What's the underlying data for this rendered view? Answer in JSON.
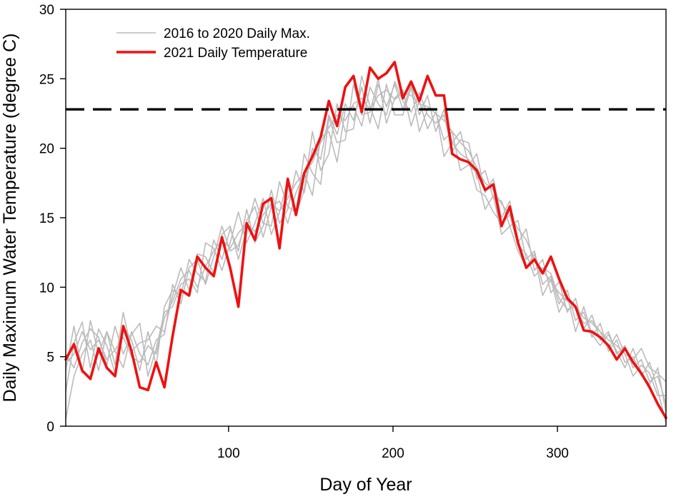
{
  "chart_data": {
    "type": "line",
    "title": "",
    "xlabel": "Day of Year",
    "ylabel": "Daily Maximum Water Temperature (degree C)",
    "xlim": [
      1,
      366
    ],
    "ylim": [
      0,
      30
    ],
    "x_ticks": [
      100,
      200,
      300
    ],
    "y_ticks": [
      0,
      5,
      10,
      15,
      20,
      25,
      30
    ],
    "grid": false,
    "legend_position": "top-left",
    "threshold": {
      "y": 22.8,
      "style": "dashed",
      "color": "#000000"
    },
    "x": [
      1,
      6,
      11,
      16,
      21,
      26,
      31,
      36,
      41,
      46,
      51,
      56,
      61,
      66,
      71,
      76,
      81,
      86,
      91,
      96,
      101,
      106,
      111,
      116,
      121,
      126,
      131,
      136,
      141,
      146,
      151,
      156,
      161,
      166,
      171,
      176,
      181,
      186,
      191,
      196,
      201,
      206,
      211,
      216,
      221,
      226,
      231,
      236,
      241,
      246,
      251,
      256,
      261,
      266,
      271,
      276,
      281,
      286,
      291,
      296,
      301,
      306,
      311,
      316,
      321,
      326,
      331,
      336,
      341,
      346,
      351,
      356,
      361,
      366
    ],
    "series": [
      {
        "name": "2016 to 2020 Daily Max.",
        "color": "#bbbbbb",
        "role": "historical",
        "lines": [
          [
            4.5,
            5.2,
            6.8,
            5.5,
            6.2,
            4.8,
            5.5,
            6.4,
            5.0,
            4.6,
            5.8,
            5.2,
            7.8,
            9.0,
            10.6,
            11.2,
            10.0,
            11.5,
            12.6,
            13.4,
            12.8,
            13.9,
            14.6,
            14.0,
            15.2,
            16.0,
            15.5,
            16.4,
            17.5,
            18.2,
            19.0,
            20.4,
            21.5,
            22.4,
            22.0,
            23.2,
            23.6,
            22.8,
            23.8,
            24.2,
            23.5,
            24.0,
            23.8,
            23.2,
            23.0,
            22.5,
            22.0,
            21.2,
            20.4,
            19.8,
            18.6,
            17.5,
            17.0,
            16.0,
            15.2,
            14.2,
            13.4,
            12.0,
            11.2,
            10.4,
            9.6,
            9.0,
            8.6,
            7.8,
            7.4,
            6.8,
            6.2,
            5.8,
            5.2,
            4.8,
            5.6,
            4.2,
            3.8,
            3.2
          ],
          [
            2.5,
            6.0,
            7.5,
            4.2,
            7.0,
            5.8,
            3.8,
            7.2,
            6.2,
            4.0,
            6.8,
            4.4,
            8.6,
            9.8,
            9.4,
            12.0,
            11.0,
            10.4,
            13.4,
            12.0,
            14.2,
            12.6,
            15.6,
            13.2,
            14.4,
            17.0,
            14.6,
            15.6,
            18.4,
            16.8,
            20.0,
            19.2,
            22.4,
            21.0,
            23.2,
            22.0,
            24.4,
            21.8,
            24.6,
            23.0,
            24.6,
            22.8,
            24.6,
            22.4,
            23.8,
            21.2,
            22.8,
            20.4,
            21.2,
            18.8,
            19.6,
            16.8,
            17.8,
            15.0,
            16.2,
            13.2,
            14.2,
            11.2,
            12.0,
            9.6,
            10.4,
            8.2,
            9.2,
            7.0,
            8.0,
            6.2,
            6.8,
            5.2,
            5.8,
            4.2,
            4.8,
            3.2,
            3.6,
            1.6
          ],
          [
            0.5,
            3.6,
            5.2,
            6.2,
            4.0,
            6.8,
            5.4,
            4.2,
            6.8,
            5.2,
            4.4,
            6.2,
            6.6,
            10.2,
            8.8,
            11.4,
            12.0,
            10.2,
            12.2,
            14.4,
            12.6,
            13.0,
            14.8,
            15.8,
            13.6,
            15.8,
            16.2,
            14.6,
            16.8,
            18.2,
            16.6,
            20.8,
            21.2,
            19.0,
            22.8,
            23.0,
            21.6,
            24.4,
            23.2,
            22.4,
            24.8,
            23.4,
            22.6,
            24.0,
            22.4,
            21.8,
            22.4,
            19.8,
            20.6,
            20.4,
            17.8,
            18.4,
            16.4,
            16.2,
            14.4,
            14.8,
            12.0,
            12.6,
            10.2,
            10.8,
            8.8,
            9.8,
            7.6,
            8.2,
            6.4,
            7.4,
            5.4,
            6.2,
            4.6,
            5.0,
            3.6,
            4.6,
            2.6,
            0.2
          ],
          [
            4.0,
            7.2,
            3.8,
            7.6,
            5.2,
            6.8,
            4.4,
            8.2,
            5.4,
            6.0,
            6.2,
            7.2,
            6.8,
            9.4,
            11.4,
            9.8,
            12.4,
            12.2,
            11.0,
            13.8,
            14.4,
            12.0,
            14.2,
            16.4,
            14.6,
            14.4,
            17.6,
            15.8,
            15.4,
            19.6,
            18.2,
            17.4,
            22.2,
            20.4,
            20.6,
            24.6,
            22.4,
            22.6,
            25.0,
            21.8,
            23.6,
            24.2,
            21.6,
            23.4,
            21.4,
            22.6,
            20.6,
            21.2,
            18.4,
            18.8,
            18.2,
            15.6,
            16.6,
            13.8,
            14.4,
            12.6,
            11.4,
            12.4,
            9.4,
            10.6,
            8.2,
            9.4,
            6.8,
            8.6,
            6.6,
            5.8,
            6.6,
            5.4,
            4.2,
            5.6,
            3.8,
            3.0,
            4.2,
            1.0
          ],
          [
            5.2,
            4.2,
            6.0,
            7.0,
            6.4,
            4.4,
            7.2,
            5.2,
            6.6,
            7.4,
            3.6,
            5.6,
            8.2,
            8.6,
            10.2,
            10.6,
            9.6,
            13.2,
            12.8,
            11.2,
            13.2,
            15.4,
            13.2,
            14.6,
            16.4,
            13.8,
            15.4,
            17.8,
            15.2,
            17.0,
            21.2,
            18.4,
            19.6,
            23.2,
            21.2,
            21.4,
            25.2,
            23.0,
            21.4,
            24.6,
            22.4,
            22.4,
            24.4,
            21.2,
            22.8,
            22.8,
            19.4,
            20.4,
            19.6,
            19.2,
            17.0,
            16.6,
            15.4,
            14.6,
            15.2,
            13.0,
            12.4,
            10.8,
            11.4,
            11.0,
            9.2,
            8.4,
            8.6,
            7.4,
            7.6,
            6.8,
            5.6,
            6.6,
            5.2,
            3.6,
            4.4,
            3.8,
            2.2,
            2.2
          ]
        ]
      },
      {
        "name": "2021 Daily Temperature",
        "color": "#ee1111",
        "role": "current",
        "values": [
          4.8,
          5.9,
          4.0,
          3.4,
          5.6,
          4.2,
          3.6,
          7.2,
          5.4,
          2.8,
          2.6,
          4.6,
          2.8,
          6.5,
          9.8,
          9.4,
          12.2,
          11.4,
          10.8,
          13.6,
          11.4,
          8.6,
          14.6,
          13.4,
          16.0,
          16.4,
          12.8,
          17.8,
          15.2,
          18.2,
          19.4,
          20.8,
          23.4,
          21.6,
          24.4,
          25.2,
          22.6,
          25.8,
          25.0,
          25.4,
          26.2,
          23.6,
          24.8,
          23.4,
          25.2,
          23.8,
          23.8,
          19.6,
          19.2,
          19.0,
          18.4,
          17.0,
          17.4,
          14.4,
          15.8,
          13.2,
          11.4,
          12.0,
          11.0,
          12.2,
          10.6,
          9.2,
          8.6,
          6.9,
          6.8,
          6.4,
          5.8,
          4.8,
          5.6,
          4.6,
          3.8,
          2.8,
          1.6,
          0.6
        ]
      }
    ]
  }
}
